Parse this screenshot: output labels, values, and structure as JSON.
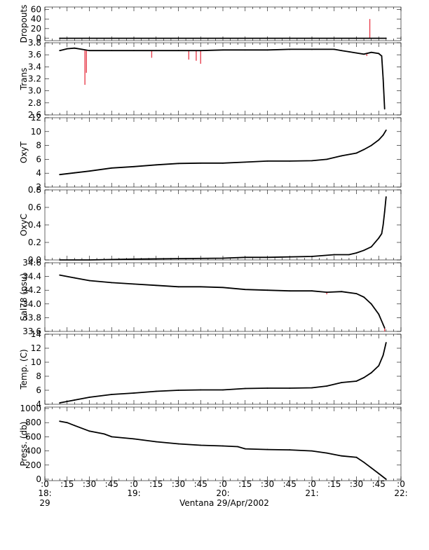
{
  "chart_data": {
    "type": "line",
    "xlabel": "Ventana 29/Apr/2002",
    "x_axis": {
      "range": [
        "18:00",
        "22:00"
      ],
      "tick_labels": [
        ":0",
        ":15",
        ":30",
        ":45",
        ":0",
        ":15",
        ":30",
        ":45",
        ":0",
        ":15",
        ":30",
        ":45",
        ":0",
        ":15",
        ":30",
        ":45",
        ":0"
      ],
      "hour_labels": [
        "18:",
        "19:",
        "20:",
        "21:",
        "22:"
      ],
      "day_label": "29"
    },
    "colors": {
      "line": "#000000",
      "spikes": "#e8414f"
    },
    "panels": [
      {
        "ylabel": "Dropouts",
        "ylim": [
          -5,
          65
        ],
        "yticks": [
          "0",
          "20",
          "40",
          "60"
        ],
        "ytick_values": [
          0,
          20,
          40,
          60
        ],
        "x": [
          "18:10",
          "18:30",
          "19:00",
          "19:30",
          "20:00",
          "20:30",
          "21:00",
          "21:30",
          "21:50"
        ],
        "y": [
          0,
          0,
          0,
          0,
          0,
          0,
          0,
          0,
          0
        ],
        "spikes": [
          {
            "x": "21:39",
            "y": 40
          }
        ]
      },
      {
        "ylabel": "Trans",
        "ylim": [
          2.6,
          3.8
        ],
        "yticks": [
          "2.6",
          "2.8",
          "3.0",
          "3.2",
          "3.4",
          "3.6",
          "3.8"
        ],
        "ytick_values": [
          2.6,
          2.8,
          3.0,
          3.2,
          3.4,
          3.6,
          3.8
        ],
        "x": [
          "18:10",
          "18:15",
          "18:20",
          "18:25",
          "18:30",
          "18:45",
          "19:00",
          "19:15",
          "19:30",
          "19:45",
          "20:00",
          "20:15",
          "20:30",
          "20:45",
          "21:00",
          "21:15",
          "21:20",
          "21:25",
          "21:30",
          "21:35",
          "21:40",
          "21:45",
          "21:47",
          "21:48",
          "21:49"
        ],
        "y": [
          3.67,
          3.7,
          3.71,
          3.69,
          3.67,
          3.67,
          3.67,
          3.67,
          3.67,
          3.67,
          3.68,
          3.68,
          3.68,
          3.69,
          3.69,
          3.69,
          3.67,
          3.65,
          3.63,
          3.61,
          3.64,
          3.62,
          3.58,
          3.2,
          2.7
        ],
        "spikes": [
          {
            "x": "18:27",
            "y": 3.1
          },
          {
            "x": "18:28",
            "y": 3.3
          },
          {
            "x": "19:12",
            "y": 3.55
          },
          {
            "x": "19:37",
            "y": 3.52
          },
          {
            "x": "19:42",
            "y": 3.5
          },
          {
            "x": "19:45",
            "y": 3.45
          },
          {
            "x": "21:37",
            "y": 3.58
          }
        ]
      },
      {
        "ylabel": "OxyT",
        "ylim": [
          2,
          12
        ],
        "yticks": [
          "2",
          "4",
          "6",
          "8",
          "10",
          "12"
        ],
        "ytick_values": [
          2,
          4,
          6,
          8,
          10,
          12
        ],
        "x": [
          "18:10",
          "18:20",
          "18:30",
          "18:45",
          "19:00",
          "19:15",
          "19:30",
          "19:45",
          "20:00",
          "20:15",
          "20:30",
          "20:45",
          "21:00",
          "21:10",
          "21:20",
          "21:30",
          "21:35",
          "21:40",
          "21:45",
          "21:48",
          "21:50"
        ],
        "y": [
          3.8,
          4.05,
          4.3,
          4.75,
          4.95,
          5.2,
          5.4,
          5.45,
          5.45,
          5.6,
          5.75,
          5.75,
          5.8,
          6.0,
          6.5,
          6.9,
          7.4,
          8.0,
          8.8,
          9.5,
          10.2
        ],
        "spikes": []
      },
      {
        "ylabel": "OxyC",
        "ylim": [
          0.0,
          0.8
        ],
        "yticks": [
          "0.0",
          "0.2",
          "0.4",
          "0.6",
          "0.8"
        ],
        "ytick_values": [
          0.0,
          0.2,
          0.4,
          0.6,
          0.8
        ],
        "x": [
          "18:10",
          "18:30",
          "19:00",
          "19:30",
          "20:00",
          "20:15",
          "20:30",
          "21:00",
          "21:15",
          "21:25",
          "21:30",
          "21:35",
          "21:40",
          "21:45",
          "21:47",
          "21:48",
          "21:49",
          "21:50"
        ],
        "y": [
          0.0,
          0.0,
          0.01,
          0.015,
          0.02,
          0.03,
          0.03,
          0.04,
          0.06,
          0.06,
          0.08,
          0.11,
          0.15,
          0.25,
          0.3,
          0.4,
          0.55,
          0.72
        ],
        "spikes": []
      },
      {
        "ylabel": "Sal78 (psu)",
        "ylim": [
          33.6,
          34.6
        ],
        "yticks": [
          "33.6",
          "33.8",
          "34.0",
          "34.2",
          "34.4",
          "34.6"
        ],
        "ytick_values": [
          33.6,
          33.8,
          34.0,
          34.2,
          34.4,
          34.6
        ],
        "x": [
          "18:10",
          "18:20",
          "18:30",
          "18:45",
          "19:00",
          "19:15",
          "19:30",
          "19:45",
          "20:00",
          "20:15",
          "20:30",
          "20:45",
          "21:00",
          "21:10",
          "21:20",
          "21:30",
          "21:35",
          "21:40",
          "21:45",
          "21:48",
          "21:49"
        ],
        "y": [
          34.42,
          34.38,
          34.34,
          34.31,
          34.29,
          34.27,
          34.25,
          34.25,
          34.24,
          34.21,
          34.2,
          34.19,
          34.19,
          34.17,
          34.18,
          34.15,
          34.1,
          34.0,
          33.85,
          33.7,
          33.65
        ],
        "spikes": [
          {
            "x": "21:10",
            "y": 34.14
          },
          {
            "x": "21:49",
            "y": 33.6
          }
        ]
      },
      {
        "ylabel": "Temp. (C)",
        "ylim": [
          4,
          14
        ],
        "yticks": [
          "4",
          "6",
          "8",
          "10",
          "12",
          "14"
        ],
        "ytick_values": [
          4,
          6,
          8,
          10,
          12,
          14
        ],
        "x": [
          "18:10",
          "18:20",
          "18:30",
          "18:45",
          "19:00",
          "19:15",
          "19:30",
          "19:45",
          "20:00",
          "20:15",
          "20:30",
          "20:45",
          "21:00",
          "21:10",
          "21:20",
          "21:30",
          "21:35",
          "21:40",
          "21:45",
          "21:48",
          "21:50"
        ],
        "y": [
          4.2,
          4.6,
          5.0,
          5.4,
          5.6,
          5.85,
          6.0,
          6.05,
          6.05,
          6.25,
          6.3,
          6.3,
          6.35,
          6.6,
          7.1,
          7.3,
          7.8,
          8.5,
          9.5,
          11.0,
          12.8
        ],
        "spikes": []
      },
      {
        "ylabel": "Press. (db)",
        "ylim": [
          -20,
          1020
        ],
        "yticks": [
          "0",
          "200",
          "400",
          "600",
          "800",
          "1000"
        ],
        "ytick_values": [
          0,
          200,
          400,
          600,
          800,
          1000
        ],
        "x": [
          "18:10",
          "18:15",
          "18:20",
          "18:30",
          "18:40",
          "18:45",
          "19:00",
          "19:15",
          "19:30",
          "19:45",
          "20:00",
          "20:10",
          "20:15",
          "20:30",
          "20:45",
          "21:00",
          "21:10",
          "21:20",
          "21:30",
          "21:35",
          "21:40",
          "21:45",
          "21:50"
        ],
        "y": [
          820,
          800,
          760,
          680,
          640,
          600,
          570,
          530,
          500,
          480,
          470,
          460,
          430,
          420,
          415,
          400,
          370,
          330,
          310,
          240,
          160,
          80,
          0
        ],
        "spikes": []
      }
    ]
  }
}
